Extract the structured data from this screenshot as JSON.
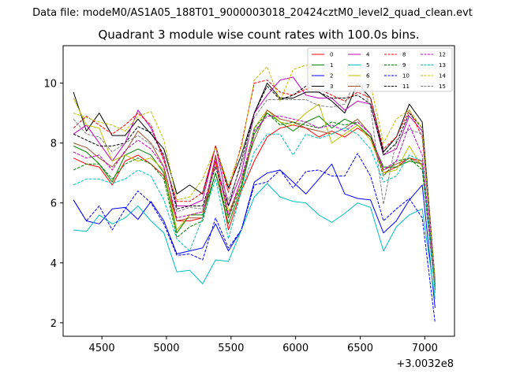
{
  "suptitle": "Data file: modeM0/AS1A05_188T01_9000003018_20424cztM0_level2_quad_clean.evt",
  "chart_data": {
    "type": "line",
    "title": "Quadrant 3 module wise count rates with 100.0s bins.",
    "xlabel": "",
    "ylabel": "",
    "x_offset_label": "+3.0032e8",
    "xlim": [
      4200,
      7230
    ],
    "ylim": [
      1.55,
      11.25
    ],
    "xticks": [
      4500,
      5000,
      5500,
      6000,
      6500,
      7000
    ],
    "yticks": [
      2,
      4,
      6,
      8,
      10
    ],
    "legend_position": "top-right",
    "x": [
      4280,
      4380,
      4480,
      4580,
      4680,
      4780,
      4880,
      4980,
      5080,
      5180,
      5280,
      5380,
      5480,
      5580,
      5680,
      5780,
      5880,
      5980,
      6080,
      6180,
      6280,
      6380,
      6480,
      6580,
      6680,
      6780,
      6880,
      6980,
      7080
    ],
    "series": [
      {
        "name": "0",
        "color": "#ff0000",
        "dash": "solid",
        "values": [
          7.5,
          7.3,
          7.2,
          6.6,
          7.4,
          7.6,
          7.3,
          6.9,
          5.4,
          5.4,
          5.5,
          7.4,
          5.1,
          6.4,
          7.4,
          8.2,
          8.5,
          8.6,
          8.5,
          8.2,
          8.4,
          8.2,
          8.5,
          8.2,
          7.0,
          7.2,
          7.5,
          7.4,
          3.1
        ]
      },
      {
        "name": "1",
        "color": "#008000",
        "dash": "solid",
        "values": [
          7.9,
          7.7,
          7.3,
          6.7,
          7.6,
          7.8,
          7.6,
          7.0,
          5.0,
          5.6,
          5.6,
          7.0,
          5.3,
          6.5,
          8.3,
          9.0,
          8.7,
          8.4,
          8.7,
          8.9,
          8.5,
          8.8,
          8.6,
          8.2,
          7.2,
          7.2,
          7.4,
          7.3,
          3.2
        ]
      },
      {
        "name": "2",
        "color": "#0000ff",
        "dash": "solid",
        "values": [
          6.1,
          5.4,
          5.3,
          5.8,
          5.85,
          5.45,
          6.05,
          5.4,
          4.3,
          4.4,
          4.5,
          5.3,
          4.4,
          5.1,
          6.7,
          7.0,
          7.1,
          6.7,
          6.3,
          6.8,
          7.3,
          6.3,
          6.15,
          6.1,
          5.0,
          5.4,
          6.1,
          6.6,
          2.5
        ]
      },
      {
        "name": "3",
        "color": "#000000",
        "dash": "solid",
        "values": [
          9.7,
          8.4,
          9.0,
          8.25,
          8.25,
          8.8,
          8.3,
          7.8,
          6.3,
          6.6,
          6.3,
          7.9,
          6.5,
          7.6,
          9.0,
          10.0,
          9.5,
          9.5,
          9.7,
          9.7,
          9.4,
          9.0,
          10.0,
          9.5,
          7.7,
          8.2,
          9.3,
          8.7,
          3.4
        ]
      },
      {
        "name": "4",
        "color": "#c000c0",
        "dash": "solid",
        "values": [
          8.3,
          8.6,
          8.0,
          7.4,
          8.0,
          9.1,
          8.5,
          7.5,
          5.9,
          5.9,
          6.1,
          7.9,
          5.9,
          7.0,
          9.0,
          9.6,
          10.1,
          10.2,
          9.6,
          9.5,
          9.5,
          9.1,
          9.4,
          9.3,
          7.6,
          7.8,
          8.9,
          8.4,
          3.3
        ]
      },
      {
        "name": "5",
        "color": "#00bfbf",
        "dash": "solid",
        "values": [
          5.1,
          5.05,
          5.6,
          5.3,
          5.5,
          5.9,
          5.4,
          5.0,
          3.7,
          3.75,
          3.3,
          4.1,
          4.05,
          5.1,
          6.2,
          6.65,
          6.2,
          6.05,
          6.0,
          5.6,
          5.35,
          5.65,
          6.0,
          5.85,
          4.4,
          5.2,
          5.6,
          5.8,
          2.8
        ]
      },
      {
        "name": "6",
        "color": "#bfbf00",
        "dash": "solid",
        "values": [
          9.5,
          8.6,
          8.5,
          7.4,
          7.6,
          7.4,
          7.5,
          7.1,
          5.1,
          5.6,
          5.7,
          7.5,
          5.7,
          6.6,
          8.5,
          9.1,
          8.7,
          8.6,
          9.0,
          9.3,
          8.0,
          8.3,
          8.6,
          8.1,
          7.0,
          7.1,
          7.9,
          7.2,
          3.2
        ]
      },
      {
        "name": "7",
        "color": "#a0522d",
        "dash": "solid",
        "values": [
          8.0,
          7.85,
          7.5,
          7.2,
          7.7,
          8.4,
          8.0,
          7.2,
          5.4,
          5.5,
          5.5,
          7.6,
          5.5,
          6.8,
          8.1,
          9.1,
          8.8,
          8.7,
          8.5,
          8.4,
          8.3,
          8.5,
          8.8,
          8.3,
          7.1,
          7.3,
          7.5,
          7.3,
          3.2
        ]
      },
      {
        "name": "8",
        "color": "#ff0000",
        "dash": "dashed",
        "values": [
          8.5,
          8.9,
          8.6,
          8.3,
          8.6,
          9.0,
          8.6,
          7.4,
          6.05,
          6.05,
          6.35,
          7.9,
          6.35,
          7.95,
          10.0,
          10.1,
          9.7,
          9.6,
          9.8,
          9.8,
          9.6,
          9.4,
          9.7,
          9.5,
          7.8,
          8.2,
          9.1,
          8.2,
          3.4
        ]
      },
      {
        "name": "9",
        "color": "#008000",
        "dash": "dashed",
        "values": [
          7.1,
          7.3,
          7.3,
          6.8,
          7.3,
          7.5,
          7.3,
          6.8,
          4.85,
          5.2,
          5.4,
          7.0,
          5.5,
          6.6,
          8.5,
          9.0,
          8.6,
          8.7,
          8.6,
          8.5,
          8.7,
          8.6,
          8.7,
          8.3,
          6.9,
          7.4,
          7.5,
          7.1,
          3.1
        ]
      },
      {
        "name": "10",
        "color": "#0000ff",
        "dash": "dashed",
        "values": [
          6.1,
          5.4,
          5.9,
          5.1,
          5.8,
          6.4,
          6.0,
          5.3,
          4.25,
          4.3,
          4.1,
          5.5,
          4.5,
          5.1,
          6.6,
          6.7,
          7.1,
          6.5,
          7.05,
          7.1,
          6.9,
          6.9,
          7.65,
          6.9,
          5.4,
          5.8,
          6.15,
          5.5,
          2.0
        ]
      },
      {
        "name": "11",
        "color": "#000000",
        "dash": "dashed",
        "values": [
          8.3,
          8.1,
          7.9,
          7.9,
          8.0,
          8.55,
          8.35,
          7.6,
          5.8,
          5.9,
          5.9,
          7.2,
          5.9,
          7.4,
          9.0,
          9.9,
          9.45,
          9.6,
          9.9,
          9.7,
          9.5,
          9.5,
          9.6,
          9.3,
          7.6,
          8.0,
          9.0,
          8.5,
          3.4
        ]
      },
      {
        "name": "12",
        "color": "#c000c0",
        "dash": "dashed",
        "values": [
          7.7,
          7.5,
          7.6,
          7.1,
          7.75,
          8.1,
          7.8,
          7.2,
          5.5,
          5.6,
          5.7,
          7.5,
          5.6,
          6.8,
          8.4,
          8.9,
          8.9,
          8.8,
          8.7,
          8.5,
          8.6,
          8.4,
          8.7,
          8.3,
          7.1,
          7.4,
          8.6,
          7.6,
          3.3
        ]
      },
      {
        "name": "13",
        "color": "#00bfbf",
        "dash": "dashed",
        "values": [
          6.6,
          6.8,
          6.8,
          6.65,
          6.8,
          7.1,
          6.9,
          6.1,
          4.8,
          4.4,
          5.5,
          6.8,
          4.8,
          6.4,
          7.7,
          8.3,
          8.3,
          7.6,
          8.3,
          8.15,
          8.3,
          8.5,
          8.3,
          7.8,
          6.7,
          6.9,
          7.6,
          7.4,
          3.0
        ]
      },
      {
        "name": "14",
        "color": "#bfbf00",
        "dash": "dashed",
        "values": [
          9.0,
          8.85,
          8.7,
          8.6,
          8.4,
          8.9,
          9.05,
          8.1,
          6.1,
          6.2,
          6.8,
          7.85,
          6.6,
          7.85,
          10.1,
          10.55,
          9.4,
          10.45,
          10.6,
          10.5,
          10.3,
          10.3,
          10.6,
          9.95,
          8.0,
          8.8,
          9.1,
          8.5,
          3.4
        ]
      },
      {
        "name": "15",
        "color": "#808080",
        "dash": "dashed",
        "values": [
          8.8,
          8.3,
          8.2,
          7.7,
          8.0,
          8.25,
          7.95,
          7.6,
          5.7,
          5.85,
          5.8,
          7.25,
          6.1,
          7.25,
          8.85,
          9.45,
          9.45,
          9.45,
          9.45,
          9.25,
          9.2,
          9.3,
          10.25,
          9.2,
          5.95,
          8.1,
          8.45,
          8.3,
          3.25
        ]
      }
    ]
  }
}
